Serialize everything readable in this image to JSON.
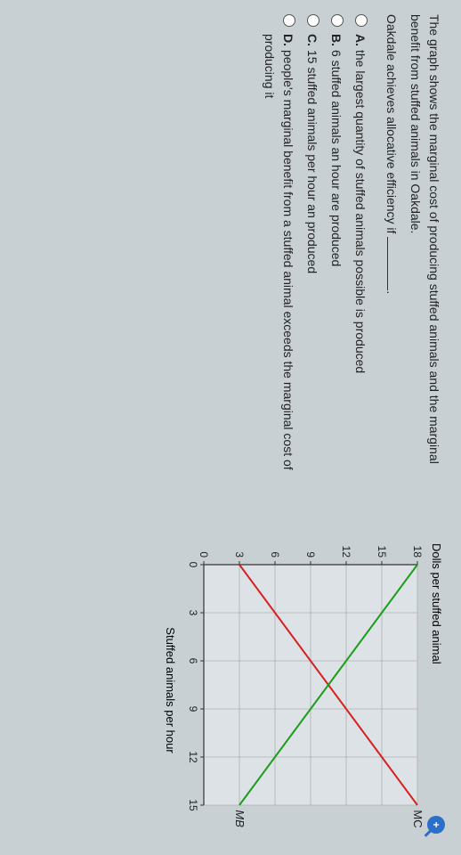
{
  "question": {
    "line1": "The graph shows the marginal cost of producing stuffed animals and the marginal benefit from stuffed animals in Oakdale.",
    "line2_prefix": "Oakdale achieves allocative efficiency if ",
    "line2_suffix": "."
  },
  "options": [
    {
      "letter": "A.",
      "text": "the largest quantity of stuffed animals possible is produced"
    },
    {
      "letter": "B.",
      "text": "6 stuffed animals an hour are produced"
    },
    {
      "letter": "C.",
      "text": "15 stuffed animals per hour an produced"
    },
    {
      "letter": "D.",
      "text": "people's marginal benefit from a stuffed animal exceeds the marginal cost of producing it"
    }
  ],
  "chart": {
    "type": "line",
    "y_title": "Dolls per stuffed animal",
    "x_title": "Stuffed animals per hour",
    "xlim": [
      0,
      15
    ],
    "ylim": [
      0,
      18
    ],
    "x_ticks": [
      0,
      3,
      6,
      9,
      12,
      15
    ],
    "y_ticks": [
      0,
      3,
      6,
      9,
      12,
      15,
      18
    ],
    "grid_color": "#b0b0b0",
    "axis_color": "#333333",
    "background_color": "#dce2e5",
    "series": [
      {
        "name": "MC",
        "color": "#d62020",
        "width": 2,
        "points": [
          [
            0,
            3
          ],
          [
            15,
            18
          ]
        ],
        "label_pos": [
          15.3,
          18
        ]
      },
      {
        "name": "MB",
        "color": "#1a9e1a",
        "width": 2,
        "points": [
          [
            0,
            18
          ],
          [
            15,
            3
          ]
        ],
        "label_pos": [
          15.3,
          3
        ],
        "italic": true
      }
    ],
    "font_size_ticks": 12,
    "font_size_labels": 13
  },
  "zoom_glyph": "+"
}
